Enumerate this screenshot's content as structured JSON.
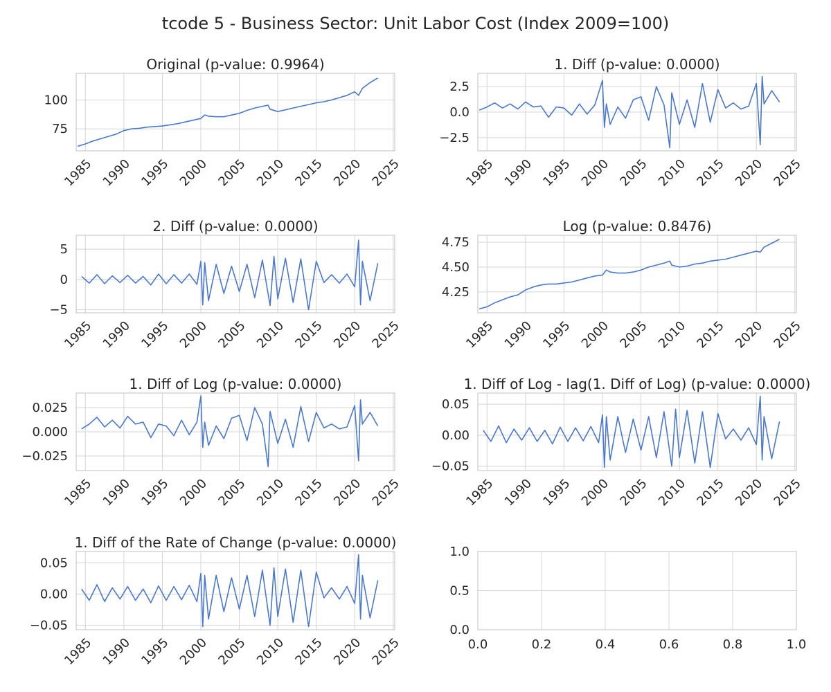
{
  "figure": {
    "title": "tcode 5 - Business Sector: Unit Labor Cost (Index 2009=100)",
    "series_color": "#4878d0",
    "grid_color": "#d4d4d4",
    "frame_color": "#cccccc"
  },
  "chart_data": [
    {
      "type": "line",
      "title": "Original (p-value: 0.9964)",
      "xlabel": "",
      "ylabel": "",
      "x_range": [
        1983.8,
        2025.2
      ],
      "x_ticks": [
        1985,
        1990,
        1995,
        2000,
        2005,
        2010,
        2015,
        2020,
        2025
      ],
      "ylim": [
        56,
        123
      ],
      "y_ticks": [
        75,
        100
      ],
      "y_tick_labels": [
        "75",
        "100"
      ],
      "grid": true,
      "x": [
        1984.0,
        1985.0,
        1986.0,
        1987.0,
        1988.0,
        1989.0,
        1990.0,
        1991.0,
        1992.0,
        1993.0,
        1994.0,
        1995.0,
        1996.0,
        1997.0,
        1998.0,
        1999.0,
        2000.0,
        2000.5,
        2001.0,
        2002.0,
        2003.0,
        2004.0,
        2005.0,
        2006.0,
        2007.0,
        2008.0,
        2008.75,
        2009.0,
        2010.0,
        2011.0,
        2012.0,
        2013.0,
        2014.0,
        2015.0,
        2016.0,
        2017.0,
        2018.0,
        2019.0,
        2020.0,
        2020.5,
        2021.0,
        2022.0,
        2023.0
      ],
      "y": [
        60,
        62,
        64.5,
        66.5,
        68.5,
        70.5,
        73.5,
        75,
        75.5,
        76.5,
        77,
        77.5,
        78.5,
        79.5,
        81,
        82.5,
        84,
        87,
        86,
        85.5,
        85.5,
        87,
        88.5,
        91,
        93,
        94.5,
        95.5,
        92,
        90,
        91.5,
        93,
        94.5,
        96,
        97.5,
        98.5,
        100,
        102,
        104,
        107,
        104,
        110,
        115,
        119
      ]
    },
    {
      "type": "line",
      "title": "1. Diff (p-value: 0.0000)",
      "xlabel": "",
      "ylabel": "",
      "x_range": [
        1983.8,
        2025.2
      ],
      "x_ticks": [
        1985,
        1990,
        1995,
        2000,
        2005,
        2010,
        2015,
        2020,
        2025
      ],
      "ylim": [
        -3.8,
        3.8
      ],
      "y_ticks": [
        -2.5,
        0,
        2.5
      ],
      "y_tick_labels": [
        "−2.5",
        "0.0",
        "2.5"
      ],
      "grid": true,
      "x": [
        1984.0,
        1985.0,
        1986.0,
        1987.0,
        1988.0,
        1989.0,
        1990.0,
        1991.0,
        1992.0,
        1993.0,
        1994.0,
        1995.0,
        1996.0,
        1997.0,
        1998.0,
        1999.0,
        2000.0,
        2000.25,
        2000.5,
        2001.0,
        2002.0,
        2003.0,
        2004.0,
        2005.0,
        2006.0,
        2007.0,
        2008.0,
        2008.75,
        2009.0,
        2010.0,
        2011.0,
        2012.0,
        2013.0,
        2014.0,
        2015.0,
        2016.0,
        2017.0,
        2018.0,
        2019.0,
        2020.0,
        2020.5,
        2020.75,
        2021.0,
        2022.0,
        2023.0
      ],
      "y": [
        0.2,
        0.5,
        0.9,
        0.4,
        0.8,
        0.3,
        1.0,
        0.5,
        0.6,
        -0.5,
        0.5,
        0.4,
        -0.3,
        0.8,
        -0.2,
        0.7,
        3.1,
        -1.5,
        0.8,
        -1.2,
        0.5,
        -0.6,
        1.2,
        1.5,
        -0.8,
        2.5,
        0.7,
        -3.5,
        1.9,
        -1.2,
        1.2,
        -1.5,
        2.8,
        -1.0,
        2.2,
        0.4,
        0.9,
        0.3,
        0.6,
        2.8,
        -3.2,
        3.5,
        0.8,
        2.1,
        1.0
      ]
    },
    {
      "type": "line",
      "title": "2. Diff (p-value: 0.0000)",
      "xlabel": "",
      "ylabel": "",
      "x_range": [
        1983.8,
        2025.2
      ],
      "x_ticks": [
        1985,
        1990,
        1995,
        2000,
        2005,
        2010,
        2015,
        2020,
        2025
      ],
      "ylim": [
        -5.5,
        7.3
      ],
      "y_ticks": [
        -5,
        0,
        5
      ],
      "y_tick_labels": [
        "−5",
        "0",
        "5"
      ],
      "grid": true,
      "x": [
        1984.5,
        1985.5,
        1986.5,
        1987.5,
        1988.5,
        1989.5,
        1990.5,
        1991.5,
        1992.5,
        1993.5,
        1994.5,
        1995.5,
        1996.5,
        1997.5,
        1998.5,
        1999.5,
        2000.0,
        2000.25,
        2000.5,
        2001.0,
        2002.0,
        2003.0,
        2004.0,
        2005.0,
        2006.0,
        2007.0,
        2008.0,
        2009.0,
        2009.5,
        2010.0,
        2011.0,
        2012.0,
        2013.0,
        2014.0,
        2015.0,
        2016.0,
        2017.0,
        2018.0,
        2019.0,
        2020.0,
        2020.5,
        2020.75,
        2021.0,
        2022.0,
        2023.0
      ],
      "y": [
        0.5,
        -0.6,
        0.8,
        -0.7,
        0.6,
        -0.5,
        0.7,
        -0.6,
        0.5,
        -0.9,
        0.9,
        -0.7,
        0.8,
        -0.6,
        0.9,
        -0.8,
        3.0,
        -4.2,
        2.8,
        -3.5,
        2.5,
        -2.3,
        2.2,
        -2.0,
        2.5,
        -3.0,
        3.2,
        -4.3,
        3.8,
        -3.2,
        3.5,
        -3.8,
        3.4,
        -5.0,
        3.0,
        -0.5,
        0.8,
        -0.6,
        0.9,
        -1.2,
        6.5,
        -4.2,
        3.0,
        -3.5,
        2.7
      ]
    },
    {
      "type": "line",
      "title": "Log (p-value: 0.8476)",
      "xlabel": "",
      "ylabel": "",
      "x_range": [
        1983.8,
        2025.2
      ],
      "x_ticks": [
        1985,
        1990,
        1995,
        2000,
        2005,
        2010,
        2015,
        2020,
        2025
      ],
      "ylim": [
        4.04,
        4.82
      ],
      "y_ticks": [
        4.25,
        4.5,
        4.75
      ],
      "y_tick_labels": [
        "4.25",
        "4.50",
        "4.75"
      ],
      "grid": true,
      "x": [
        1984.0,
        1985.0,
        1986.0,
        1987.0,
        1988.0,
        1989.0,
        1990.0,
        1991.0,
        1992.0,
        1993.0,
        1994.0,
        1995.0,
        1996.0,
        1997.0,
        1998.0,
        1999.0,
        2000.0,
        2000.5,
        2001.0,
        2002.0,
        2003.0,
        2004.0,
        2005.0,
        2006.0,
        2007.0,
        2008.0,
        2008.75,
        2009.0,
        2010.0,
        2011.0,
        2012.0,
        2013.0,
        2014.0,
        2015.0,
        2016.0,
        2017.0,
        2018.0,
        2019.0,
        2020.0,
        2020.5,
        2021.0,
        2022.0,
        2023.0
      ],
      "y": [
        4.08,
        4.1,
        4.14,
        4.17,
        4.2,
        4.22,
        4.27,
        4.3,
        4.32,
        4.33,
        4.33,
        4.34,
        4.35,
        4.37,
        4.39,
        4.41,
        4.42,
        4.47,
        4.45,
        4.44,
        4.44,
        4.45,
        4.47,
        4.5,
        4.52,
        4.54,
        4.56,
        4.52,
        4.5,
        4.51,
        4.53,
        4.54,
        4.56,
        4.57,
        4.58,
        4.6,
        4.62,
        4.64,
        4.66,
        4.65,
        4.7,
        4.74,
        4.78
      ]
    },
    {
      "type": "line",
      "title": "1. Diff of Log (p-value: 0.0000)",
      "xlabel": "",
      "ylabel": "",
      "x_range": [
        1983.8,
        2025.2
      ],
      "x_ticks": [
        1985,
        1990,
        1995,
        2000,
        2005,
        2010,
        2015,
        2020,
        2025
      ],
      "ylim": [
        -0.04,
        0.04
      ],
      "y_ticks": [
        -0.025,
        0,
        0.025
      ],
      "y_tick_labels": [
        "−0.025",
        "0.000",
        "0.025"
      ],
      "grid": true,
      "x": [
        1984.5,
        1985.5,
        1986.5,
        1987.5,
        1988.5,
        1989.5,
        1990.5,
        1991.5,
        1992.5,
        1993.5,
        1994.5,
        1995.5,
        1996.5,
        1997.5,
        1998.5,
        1999.5,
        2000.0,
        2000.25,
        2000.5,
        2001.0,
        2002.0,
        2003.0,
        2004.0,
        2005.0,
        2006.0,
        2007.0,
        2008.0,
        2008.75,
        2009.0,
        2010.0,
        2011.0,
        2012.0,
        2013.0,
        2014.0,
        2015.0,
        2016.0,
        2017.0,
        2018.0,
        2019.0,
        2020.0,
        2020.5,
        2020.75,
        2021.0,
        2022.0,
        2023.0
      ],
      "y": [
        0.003,
        0.008,
        0.015,
        0.005,
        0.012,
        0.004,
        0.016,
        0.008,
        0.01,
        -0.006,
        0.008,
        0.006,
        -0.004,
        0.012,
        -0.003,
        0.01,
        0.037,
        -0.016,
        0.01,
        -0.014,
        0.006,
        -0.007,
        0.014,
        0.017,
        -0.009,
        0.025,
        0.008,
        -0.036,
        0.021,
        -0.012,
        0.013,
        -0.016,
        0.026,
        -0.01,
        0.02,
        0.004,
        0.008,
        0.003,
        0.005,
        0.027,
        -0.03,
        0.033,
        0.008,
        0.02,
        0.006
      ]
    },
    {
      "type": "line",
      "title": "1. Diff of Log - lag(1. Diff of Log) (p-value: 0.0000)",
      "xlabel": "",
      "ylabel": "",
      "x_range": [
        1983.8,
        2025.2
      ],
      "x_ticks": [
        1985,
        1990,
        1995,
        2000,
        2005,
        2010,
        2015,
        2020,
        2025
      ],
      "ylim": [
        -0.057,
        0.068
      ],
      "y_ticks": [
        -0.05,
        0,
        0.05
      ],
      "y_tick_labels": [
        "−0.05",
        "0.00",
        "0.05"
      ],
      "grid": true,
      "x": [
        1984.5,
        1985.5,
        1986.5,
        1987.5,
        1988.5,
        1989.5,
        1990.5,
        1991.5,
        1992.5,
        1993.5,
        1994.5,
        1995.5,
        1996.5,
        1997.5,
        1998.5,
        1999.5,
        2000.0,
        2000.25,
        2000.5,
        2001.0,
        2002.0,
        2003.0,
        2004.0,
        2005.0,
        2006.0,
        2007.0,
        2008.0,
        2009.0,
        2009.5,
        2010.0,
        2011.0,
        2012.0,
        2013.0,
        2014.0,
        2015.0,
        2016.0,
        2017.0,
        2018.0,
        2019.0,
        2020.0,
        2020.5,
        2020.75,
        2021.0,
        2022.0,
        2023.0
      ],
      "y": [
        0.008,
        -0.01,
        0.015,
        -0.012,
        0.01,
        -0.008,
        0.012,
        -0.01,
        0.008,
        -0.014,
        0.013,
        -0.01,
        0.012,
        -0.009,
        0.014,
        -0.012,
        0.033,
        -0.052,
        0.03,
        -0.04,
        0.03,
        -0.028,
        0.026,
        -0.024,
        0.03,
        -0.036,
        0.038,
        -0.05,
        0.042,
        -0.036,
        0.04,
        -0.045,
        0.038,
        -0.052,
        0.035,
        -0.006,
        0.01,
        -0.008,
        0.012,
        -0.015,
        0.063,
        -0.04,
        0.03,
        -0.038,
        0.022
      ]
    },
    {
      "type": "line",
      "title": "1. Diff of the Rate of Change (p-value: 0.0000)",
      "xlabel": "",
      "ylabel": "",
      "x_range": [
        1983.8,
        2025.2
      ],
      "x_ticks": [
        1985,
        1990,
        1995,
        2000,
        2005,
        2010,
        2015,
        2020,
        2025
      ],
      "ylim": [
        -0.057,
        0.068
      ],
      "y_ticks": [
        -0.05,
        0,
        0.05
      ],
      "y_tick_labels": [
        "−0.05",
        "0.00",
        "0.05"
      ],
      "grid": true,
      "x": [
        1984.5,
        1985.5,
        1986.5,
        1987.5,
        1988.5,
        1989.5,
        1990.5,
        1991.5,
        1992.5,
        1993.5,
        1994.5,
        1995.5,
        1996.5,
        1997.5,
        1998.5,
        1999.5,
        2000.0,
        2000.25,
        2000.5,
        2001.0,
        2002.0,
        2003.0,
        2004.0,
        2005.0,
        2006.0,
        2007.0,
        2008.0,
        2009.0,
        2009.5,
        2010.0,
        2011.0,
        2012.0,
        2013.0,
        2014.0,
        2015.0,
        2016.0,
        2017.0,
        2018.0,
        2019.0,
        2020.0,
        2020.5,
        2020.75,
        2021.0,
        2022.0,
        2023.0
      ],
      "y": [
        0.008,
        -0.01,
        0.015,
        -0.012,
        0.01,
        -0.008,
        0.012,
        -0.01,
        0.008,
        -0.014,
        0.013,
        -0.01,
        0.012,
        -0.009,
        0.014,
        -0.012,
        0.033,
        -0.052,
        0.03,
        -0.04,
        0.03,
        -0.028,
        0.026,
        -0.024,
        0.03,
        -0.036,
        0.038,
        -0.05,
        0.042,
        -0.036,
        0.04,
        -0.045,
        0.038,
        -0.052,
        0.035,
        -0.006,
        0.01,
        -0.008,
        0.012,
        -0.015,
        0.063,
        -0.04,
        0.03,
        -0.038,
        0.022
      ]
    },
    {
      "type": "line",
      "title": "",
      "xlabel": "",
      "ylabel": "",
      "x_range": [
        0,
        1
      ],
      "x_ticks": [
        0,
        0.2,
        0.4,
        0.6,
        0.8,
        1.0
      ],
      "x_tick_labels": [
        "0.0",
        "0.2",
        "0.4",
        "0.6",
        "0.8",
        "1.0"
      ],
      "x_tick_rotation": 0,
      "ylim": [
        0,
        1
      ],
      "y_ticks": [
        0,
        0.5,
        1.0
      ],
      "y_tick_labels": [
        "0.0",
        "0.5",
        "1.0"
      ],
      "grid": true,
      "x": [],
      "y": []
    }
  ]
}
